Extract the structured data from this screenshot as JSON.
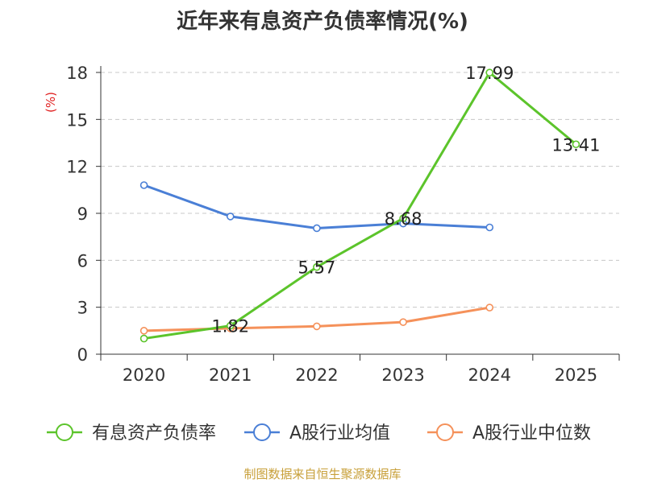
{
  "chart_data": {
    "type": "line",
    "title": "近年来有息资产负债率情况(%)",
    "ylabel": "(%)",
    "xlabel": "",
    "categories": [
      "2020",
      "2021",
      "2022",
      "2023",
      "2024",
      "2025"
    ],
    "ylim": [
      0,
      18
    ],
    "yticks": [
      "0",
      "3",
      "6",
      "9",
      "12",
      "15",
      "18"
    ],
    "grid": true,
    "legend_position": "bottom",
    "series": [
      {
        "name": "有息资产负债率",
        "color": "#5cc42b",
        "values": [
          1.0,
          1.82,
          5.57,
          8.68,
          17.99,
          13.41
        ],
        "labels": [
          "",
          "1.82",
          "5.57",
          "8.68",
          "17.99",
          "13.41"
        ]
      },
      {
        "name": "A股行业均值",
        "color": "#4a7fd6",
        "values": [
          10.8,
          8.8,
          8.05,
          8.35,
          8.1,
          null
        ],
        "labels": []
      },
      {
        "name": "A股行业中位数",
        "color": "#f5915a",
        "values": [
          1.5,
          1.65,
          1.78,
          2.05,
          2.98,
          null
        ],
        "labels": []
      }
    ]
  },
  "footer": {
    "source": "制图数据来自恒生聚源数据库"
  }
}
